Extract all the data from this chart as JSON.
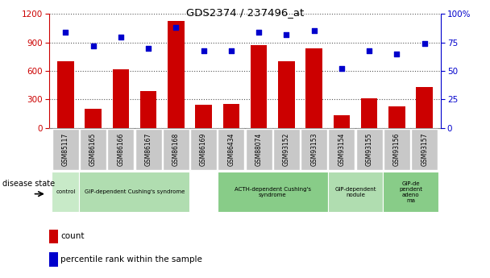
{
  "title": "GDS2374 / 237496_at",
  "samples": [
    "GSM85117",
    "GSM86165",
    "GSM86166",
    "GSM86167",
    "GSM86168",
    "GSM86169",
    "GSM86434",
    "GSM88074",
    "GSM93152",
    "GSM93153",
    "GSM93154",
    "GSM93155",
    "GSM93156",
    "GSM93157"
  ],
  "counts": [
    700,
    200,
    620,
    390,
    1130,
    240,
    250,
    870,
    700,
    840,
    130,
    310,
    230,
    430
  ],
  "percentiles": [
    84,
    72,
    80,
    70,
    88,
    68,
    68,
    84,
    82,
    85,
    52,
    68,
    65,
    74
  ],
  "bar_color": "#cc0000",
  "dot_color": "#0000cc",
  "ylim_left": [
    0,
    1200
  ],
  "ylim_right": [
    0,
    100
  ],
  "yticks_left": [
    0,
    300,
    600,
    900,
    1200
  ],
  "yticks_right": [
    0,
    25,
    50,
    75,
    100
  ],
  "disease_groups": [
    {
      "label": "control",
      "start": 0,
      "end": 1,
      "color": "#c8eac8"
    },
    {
      "label": "GIP-dependent Cushing's syndrome",
      "start": 1,
      "end": 5,
      "color": "#b0ddb0"
    },
    {
      "label": "ACTH-dependent Cushing's\nsyndrome",
      "start": 6,
      "end": 10,
      "color": "#88cc88"
    },
    {
      "label": "GIP-dependent\nnodule",
      "start": 10,
      "end": 12,
      "color": "#b0ddb0"
    },
    {
      "label": "GIP-de\npendent\nadeno\nma",
      "start": 12,
      "end": 14,
      "color": "#88cc88"
    }
  ],
  "grid_color": "#555555",
  "left_axis_color": "#cc0000",
  "right_axis_color": "#0000cc",
  "tick_bg_color": "#c8c8c8",
  "tick_border_color": "#ffffff"
}
